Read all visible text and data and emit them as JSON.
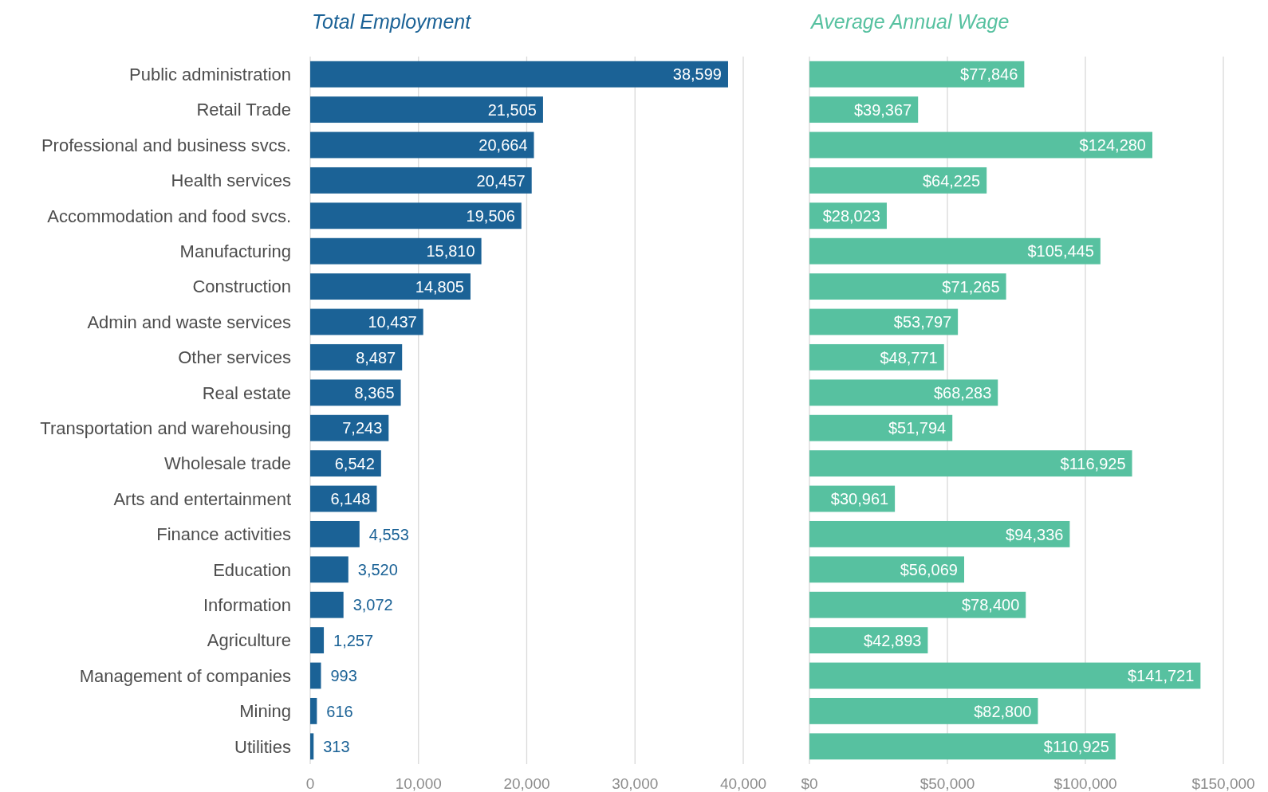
{
  "chart_data": [
    {
      "type": "bar",
      "orientation": "horizontal",
      "title": "Total Employment",
      "categories": [
        "Public administration",
        "Retail Trade",
        "Professional and business svcs.",
        "Health services",
        "Accommodation and food svcs.",
        "Manufacturing",
        "Construction",
        "Admin and waste services",
        "Other services",
        "Real estate",
        "Transportation and warehousing",
        "Wholesale trade",
        "Arts and entertainment",
        "Finance activities",
        "Education",
        "Information",
        "Agriculture",
        "Management of companies",
        "Mining",
        "Utilities"
      ],
      "values": [
        38599,
        21505,
        20664,
        20457,
        19506,
        15810,
        14805,
        10437,
        8487,
        8365,
        7243,
        6542,
        6148,
        4553,
        3520,
        3072,
        1257,
        993,
        616,
        313
      ],
      "value_labels": [
        "38,599",
        "21,505",
        "20,664",
        "20,457",
        "19,506",
        "15,810",
        "14,805",
        "10,437",
        "8,487",
        "8,365",
        "7,243",
        "6,542",
        "6,148",
        "4,553",
        "3,520",
        "3,072",
        "1,257",
        "993",
        "616",
        "313"
      ],
      "color": "#1b6296",
      "xlim": [
        0,
        40000
      ],
      "xticks": [
        0,
        {
          "value": 10000,
          "label": "10,000"
        },
        {
          "value": 20000,
          "label": "20,000"
        },
        {
          "value": 30000,
          "label": "30,000"
        },
        {
          "value": 40000,
          "label": "40,000"
        }
      ],
      "grid": "x"
    },
    {
      "type": "bar",
      "orientation": "horizontal",
      "title": "Average Annual Wage",
      "categories": [
        null,
        null,
        null,
        null,
        null,
        null,
        null,
        null,
        null,
        null,
        null,
        null,
        null,
        null,
        null,
        null,
        null,
        null,
        null,
        null
      ],
      "values": [
        77846,
        39367,
        124280,
        64225,
        28023,
        105445,
        71265,
        53797,
        48771,
        68283,
        51794,
        116925,
        30961,
        94336,
        56069,
        78400,
        42893,
        141721,
        82800,
        110925
      ],
      "value_labels": [
        "$77,846",
        "$39,367",
        "$124,280",
        "$64,225",
        "$28,023",
        "$105,445",
        "$71,265",
        "$53,797",
        "$48,771",
        "$68,283",
        "$51,794",
        "$116,925",
        "$30,961",
        "$94,336",
        "$56,069",
        "$78,400",
        "$42,893",
        "$141,721",
        "$82,800",
        "$110,925"
      ],
      "color": "#57c1a0",
      "xlim": [
        0,
        150000
      ],
      "xticks": [
        {
          "value": 0,
          "label": "$0"
        },
        {
          "value": 50000,
          "label": "$50,000"
        },
        {
          "value": 100000,
          "label": "$100,000"
        },
        {
          "value": 150000,
          "label": "$150,000"
        }
      ],
      "grid": "x",
      "tick_labels": "x"
    }
  ]
}
